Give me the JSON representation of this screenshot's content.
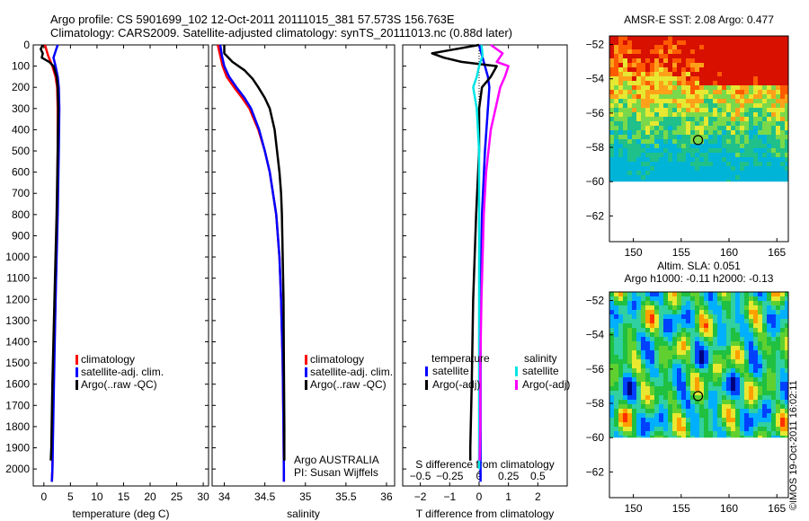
{
  "header": {
    "line1": "Argo profile: CS 5901699_102 12-Oct-2011 20111015_381 57.573S 156.763E",
    "line2": "Climatology: CARS2009. Satellite-adjusted climatology: synTS_20111013.nc (0.88d later)"
  },
  "chart_data": [
    {
      "type": "line",
      "id": "temperature",
      "xlabel": "temperature (deg C)",
      "ylabel": "",
      "xlim": [
        -2,
        31
      ],
      "ylim": [
        2080,
        0
      ],
      "xticks": [
        0,
        5,
        10,
        15,
        20,
        25,
        30
      ],
      "yticks": [
        0,
        100,
        200,
        300,
        400,
        500,
        600,
        700,
        800,
        900,
        1000,
        1100,
        1200,
        1300,
        1400,
        1500,
        1600,
        1700,
        1800,
        1900,
        2000
      ],
      "legend": [
        "climatology",
        "satellite-adj. clim.",
        "Argo(..raw -QC)"
      ],
      "legend_colors": [
        "#ff0000",
        "#0000ff",
        "#000000"
      ],
      "series": [
        {
          "name": "climatology",
          "color": "#ff0000",
          "depth": [
            0,
            50,
            100,
            150,
            200,
            300,
            500,
            800,
            1200,
            1600,
            2000,
            2060
          ],
          "values": [
            0.2,
            0.8,
            1.6,
            2.2,
            2.5,
            2.6,
            2.6,
            2.5,
            2.2,
            1.8,
            1.6,
            1.5
          ]
        },
        {
          "name": "satellite-adj. clim.",
          "color": "#0000ff",
          "depth": [
            0,
            30,
            60,
            100,
            150,
            200,
            300,
            500,
            800,
            1200,
            1600,
            2000,
            2060
          ],
          "values": [
            2.6,
            2.2,
            1.8,
            2.2,
            2.6,
            2.8,
            2.9,
            2.8,
            2.6,
            2.2,
            1.9,
            1.6,
            1.5
          ]
        },
        {
          "name": "Argo(..raw -QC)",
          "color": "#000000",
          "depth": [
            0,
            20,
            40,
            60,
            80,
            100,
            150,
            200,
            300,
            500,
            800,
            1200,
            1600,
            1900,
            1960
          ],
          "values": [
            -0.2,
            -0.6,
            -0.2,
            -0.4,
            1.0,
            1.8,
            2.4,
            2.6,
            2.7,
            2.6,
            2.4,
            2.0,
            1.6,
            1.4,
            1.3
          ]
        }
      ]
    },
    {
      "type": "line",
      "id": "salinity",
      "xlabel": "salinity",
      "ylabel": "",
      "xlim": [
        33.85,
        36.1
      ],
      "ylim": [
        2080,
        0
      ],
      "xticks": [
        34,
        34.5,
        35,
        35.5,
        36
      ],
      "xtick_labels": [
        "34",
        "34.5",
        "35",
        "35.5",
        "36"
      ],
      "legend": [
        "climatology",
        "satellite-adj. clim.",
        "Argo(..raw -QC)"
      ],
      "legend_colors": [
        "#ff0000",
        "#0000ff",
        "#000000"
      ],
      "annotation_lines": [
        "Argo AUSTRALIA",
        "PI: Susan Wijffels"
      ],
      "series": [
        {
          "name": "climatology",
          "color": "#ff0000",
          "depth": [
            0,
            50,
            100,
            150,
            200,
            250,
            300,
            400,
            500,
            600,
            700,
            800,
            1000,
            1200,
            1500,
            1800,
            2000,
            2060
          ],
          "values": [
            33.92,
            33.95,
            33.98,
            34.03,
            34.12,
            34.22,
            34.31,
            34.42,
            34.5,
            34.56,
            34.6,
            34.64,
            34.68,
            34.7,
            34.72,
            34.73,
            34.735,
            34.735
          ]
        },
        {
          "name": "satellite-adj. clim.",
          "color": "#0000ff",
          "depth": [
            0,
            50,
            100,
            150,
            200,
            250,
            300,
            400,
            500,
            600,
            700,
            800,
            1000,
            1200,
            1500,
            1800,
            2000,
            2060
          ],
          "values": [
            33.95,
            33.97,
            34.0,
            34.06,
            34.15,
            34.25,
            34.33,
            34.43,
            34.5,
            34.56,
            34.6,
            34.64,
            34.68,
            34.7,
            34.72,
            34.73,
            34.735,
            34.735
          ]
        },
        {
          "name": "Argo(..raw -QC)",
          "color": "#000000",
          "depth": [
            0,
            40,
            80,
            120,
            160,
            200,
            250,
            300,
            400,
            500,
            600,
            700,
            800,
            1000,
            1200,
            1500,
            1800,
            1960
          ],
          "values": [
            34.0,
            34.0,
            34.1,
            34.25,
            34.35,
            34.42,
            34.5,
            34.56,
            34.62,
            34.65,
            34.68,
            34.7,
            34.71,
            34.72,
            34.73,
            34.735,
            34.74,
            34.74
          ]
        }
      ]
    },
    {
      "type": "line",
      "id": "difference",
      "xlabel": "T difference from climatology",
      "top_axis_label": "S difference from climatology",
      "xlim": [
        -2.6,
        3.0
      ],
      "ylim": [
        2080,
        0
      ],
      "xticks": [
        -2,
        -1,
        0,
        1,
        2
      ],
      "secondary_xticks": [
        -0.5,
        -0.25,
        0,
        0.25,
        0.5
      ],
      "secondary_xtick_labels": [
        "−0.5",
        "−0.25",
        "0",
        "0.25",
        "0.5"
      ],
      "legend": {
        "temperature_header": "temperature",
        "salinity_header": "salinity",
        "entries": [
          "satellite",
          "Argo(-adj)",
          "satellite",
          "Argo(-adj)"
        ],
        "colors": [
          "#0000ff",
          "#000000",
          "#00e5e5",
          "#ff00ff"
        ]
      },
      "series": [
        {
          "name": "temperature satellite",
          "color": "#0000ff",
          "depth": [
            0,
            50,
            100,
            150,
            200,
            300,
            500,
            800,
            1200,
            1600,
            2000,
            2060
          ],
          "values": [
            0.0,
            0.1,
            0.2,
            0.3,
            0.35,
            0.3,
            0.2,
            0.1,
            0.05,
            0.05,
            0.05,
            0.05
          ]
        },
        {
          "name": "temperature Argo(-adj)",
          "color": "#000000",
          "depth": [
            0,
            20,
            40,
            60,
            80,
            100,
            150,
            200,
            300,
            500,
            800,
            1200,
            1600,
            1900,
            1960
          ],
          "values": [
            0.0,
            -0.8,
            -1.6,
            -1.2,
            -0.6,
            0.6,
            0.4,
            0.1,
            0.0,
            0.0,
            -0.1,
            -0.2,
            -0.25,
            -0.3,
            -0.3
          ]
        },
        {
          "name": "salinity satellite",
          "color": "#00e5e5",
          "depth": [
            0,
            50,
            100,
            150,
            200,
            300,
            500,
            800,
            1200,
            1600,
            2000
          ],
          "values": [
            0.02,
            0.03,
            0.0,
            -0.02,
            -0.05,
            -0.02,
            0.0,
            0.0,
            0.0,
            0.0,
            0.0
          ]
        },
        {
          "name": "salinity Argo(-adj)",
          "color": "#ff00ff",
          "depth": [
            0,
            40,
            80,
            100,
            150,
            200,
            300,
            400,
            500,
            600,
            800,
            1000,
            1200,
            1500,
            1800,
            1960
          ],
          "values": [
            0.1,
            0.2,
            0.15,
            0.25,
            0.22,
            0.18,
            0.14,
            0.1,
            0.08,
            0.06,
            0.04,
            0.03,
            0.02,
            0.01,
            0.01,
            0.005
          ]
        }
      ]
    },
    {
      "type": "heatmap",
      "id": "sst-map",
      "title": "AMSR-E SST: 2.08 Argo: 0.477",
      "xlim": [
        147.5,
        166.2
      ],
      "ylim": [
        -63.5,
        -51.5
      ],
      "xticks": [
        150,
        155,
        160,
        165
      ],
      "yticks": [
        -52,
        -54,
        -56,
        -58,
        -60,
        -62
      ],
      "ytick_labels": [
        "−52",
        "−54",
        "−56",
        "−58",
        "−60",
        "−62"
      ],
      "data_region": {
        "lon": [
          147.5,
          166.2
        ],
        "lat": [
          -60,
          -51.5
        ]
      },
      "marker": {
        "lon": 156.763,
        "lat": -57.573
      }
    },
    {
      "type": "heatmap",
      "id": "sla-map",
      "title_lines": [
        "Altim. SLA: 0.051",
        "Argo h1000: -0.11 h2000: -0.13"
      ],
      "xlim": [
        147.5,
        166.2
      ],
      "ylim": [
        -63.5,
        -51.5
      ],
      "xticks": [
        150,
        155,
        160,
        165
      ],
      "yticks": [
        -52,
        -54,
        -56,
        -58,
        -60,
        -62
      ],
      "ytick_labels": [
        "−52",
        "−54",
        "−56",
        "−58",
        "−60",
        "−62"
      ],
      "data_region": {
        "lon": [
          147.5,
          166.2
        ],
        "lat": [
          -60,
          -51.5
        ]
      },
      "marker": {
        "lon": 156.763,
        "lat": -57.573
      }
    }
  ],
  "footer": {
    "stamp": "©IMOS 19-Oct-2011 16:02:11"
  }
}
